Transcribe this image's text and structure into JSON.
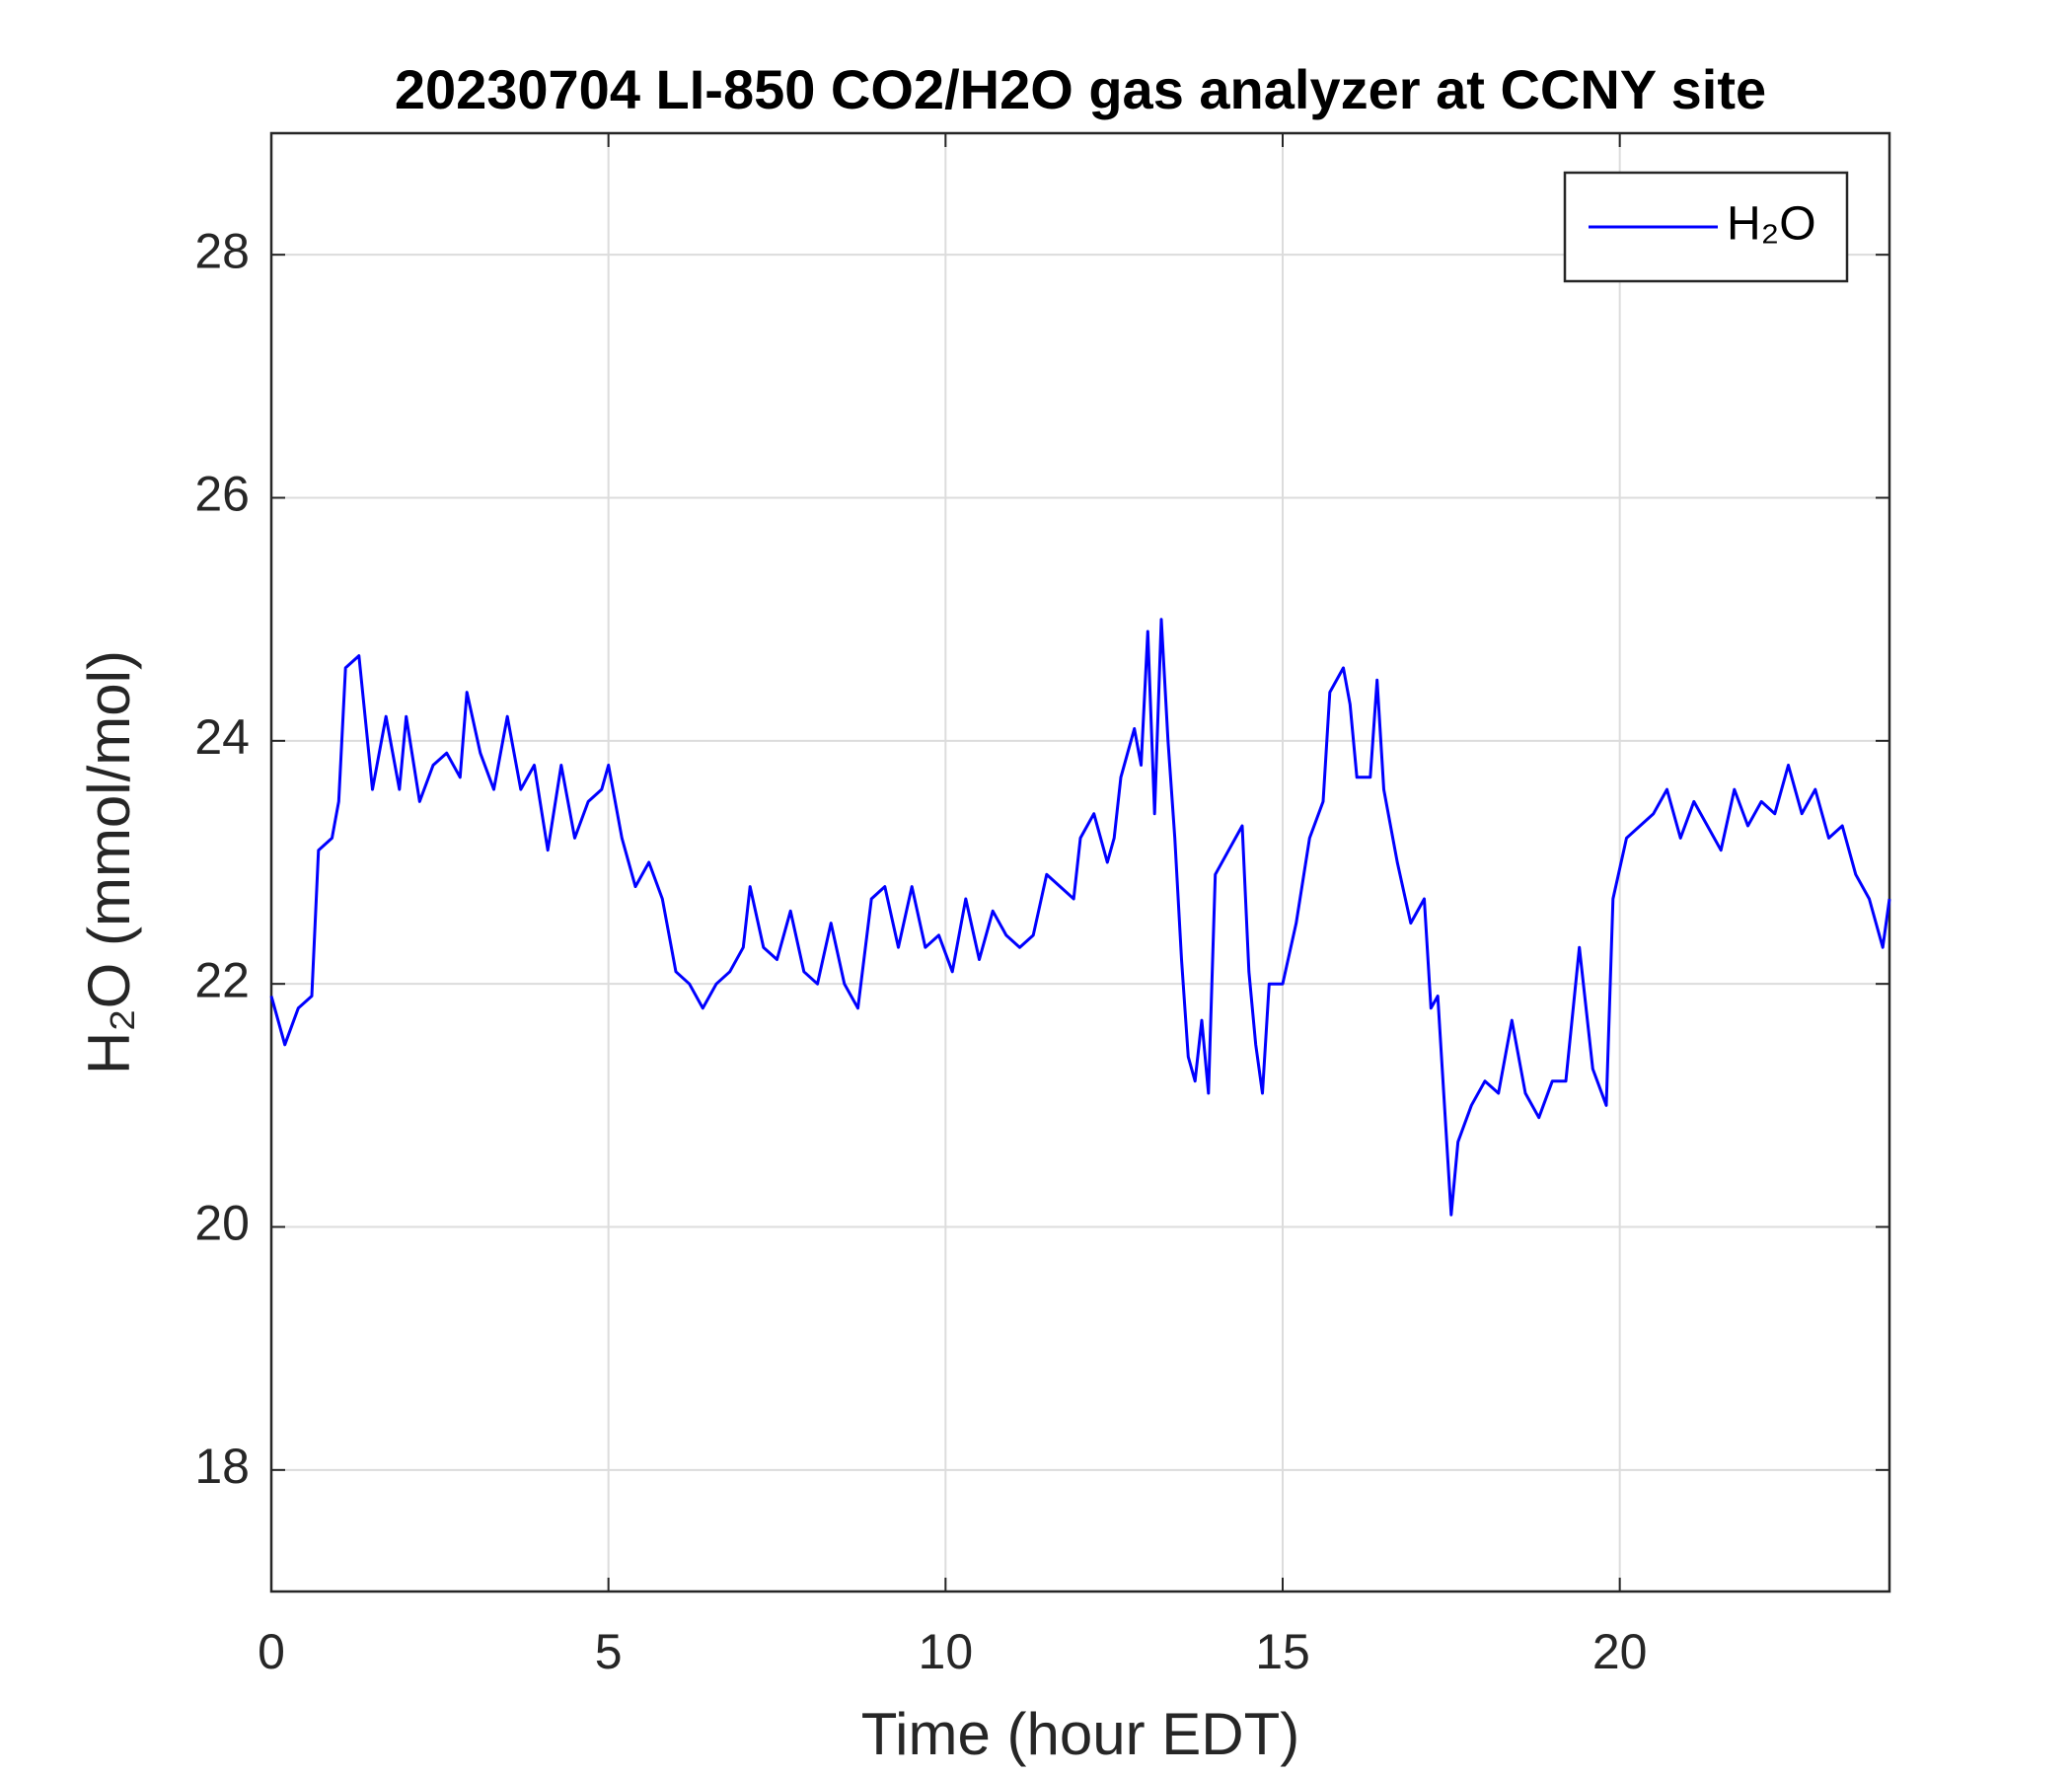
{
  "chart_data": {
    "type": "line",
    "title": "20230704 LI-850 CO2/H2O gas analyzer at CCNY site",
    "xlabel": "Time (hour EDT)",
    "ylabel": "H₂O (mmol/mol)",
    "xlim": [
      0,
      24
    ],
    "ylim": [
      17,
      29
    ],
    "xticks": [
      0,
      5,
      10,
      15,
      20
    ],
    "yticks": [
      18,
      20,
      22,
      24,
      26,
      28
    ],
    "grid": true,
    "legend": "northeast",
    "x": [
      0,
      0.2,
      0.4,
      0.6,
      0.7,
      0.9,
      1.0,
      1.1,
      1.3,
      1.5,
      1.7,
      1.9,
      2.0,
      2.2,
      2.4,
      2.6,
      2.8,
      2.9,
      3.1,
      3.3,
      3.5,
      3.7,
      3.9,
      4.1,
      4.3,
      4.5,
      4.7,
      4.9,
      5.0,
      5.2,
      5.4,
      5.6,
      5.8,
      6.0,
      6.2,
      6.4,
      6.6,
      6.8,
      7.0,
      7.1,
      7.3,
      7.5,
      7.7,
      7.9,
      8.1,
      8.3,
      8.5,
      8.7,
      8.9,
      9.1,
      9.3,
      9.5,
      9.7,
      9.9,
      10.1,
      10.3,
      10.5,
      10.7,
      10.9,
      11.1,
      11.3,
      11.5,
      11.7,
      11.9,
      12.0,
      12.2,
      12.4,
      12.5,
      12.6,
      12.8,
      12.9,
      13.0,
      13.1,
      13.2,
      13.3,
      13.4,
      13.5,
      13.6,
      13.7,
      13.8,
      13.9,
      14.0,
      14.2,
      14.4,
      14.5,
      14.6,
      14.7,
      14.8,
      15.0,
      15.2,
      15.4,
      15.6,
      15.7,
      15.9,
      16.0,
      16.1,
      16.3,
      16.4,
      16.5,
      16.7,
      16.9,
      17.1,
      17.2,
      17.3,
      17.4,
      17.5,
      17.6,
      17.8,
      18.0,
      18.2,
      18.4,
      18.6,
      18.8,
      19.0,
      19.2,
      19.4,
      19.6,
      19.8,
      19.9,
      20.1,
      20.3,
      20.5,
      20.7,
      20.9,
      21.1,
      21.3,
      21.5,
      21.7,
      21.9,
      22.1,
      22.3,
      22.5,
      22.7,
      22.9,
      23.1,
      23.3,
      23.5,
      23.7,
      23.9,
      24.0
    ],
    "series": [
      {
        "name": "H₂O",
        "color": "#0000ff",
        "values": [
          21.9,
          21.5,
          21.8,
          21.9,
          23.1,
          23.2,
          23.5,
          24.6,
          24.7,
          23.6,
          24.2,
          23.6,
          24.2,
          23.5,
          23.8,
          23.9,
          23.7,
          24.4,
          23.9,
          23.6,
          24.2,
          23.6,
          23.8,
          23.1,
          23.8,
          23.2,
          23.5,
          23.6,
          23.8,
          23.2,
          22.8,
          23.0,
          22.7,
          22.1,
          22.0,
          21.8,
          22.0,
          22.1,
          22.3,
          22.8,
          22.3,
          22.2,
          22.6,
          22.1,
          22.0,
          22.5,
          22.0,
          21.8,
          22.7,
          22.8,
          22.3,
          22.8,
          22.3,
          22.4,
          22.1,
          22.7,
          22.2,
          22.6,
          22.4,
          22.3,
          22.4,
          22.9,
          22.8,
          22.7,
          23.2,
          23.4,
          23.0,
          23.2,
          23.7,
          24.1,
          23.8,
          24.9,
          23.4,
          25.0,
          24.0,
          23.2,
          22.2,
          21.4,
          21.2,
          21.7,
          21.1,
          22.9,
          23.1,
          23.3,
          22.1,
          21.5,
          21.1,
          22.0,
          22.0,
          22.5,
          23.2,
          23.5,
          24.4,
          24.6,
          24.3,
          23.7,
          23.7,
          24.5,
          23.6,
          23.0,
          22.5,
          22.7,
          21.8,
          21.9,
          21.0,
          20.1,
          20.7,
          21.0,
          21.2,
          21.1,
          21.7,
          21.1,
          20.9,
          21.2,
          21.2,
          22.3,
          21.3,
          21.0,
          22.7,
          23.2,
          23.3,
          23.4,
          23.6,
          23.2,
          23.5,
          23.3,
          23.1,
          23.6,
          23.3,
          23.5,
          23.4,
          23.8,
          23.4,
          23.6,
          23.2,
          23.3,
          22.9,
          22.7,
          22.3,
          22.7
        ]
      }
    ]
  }
}
